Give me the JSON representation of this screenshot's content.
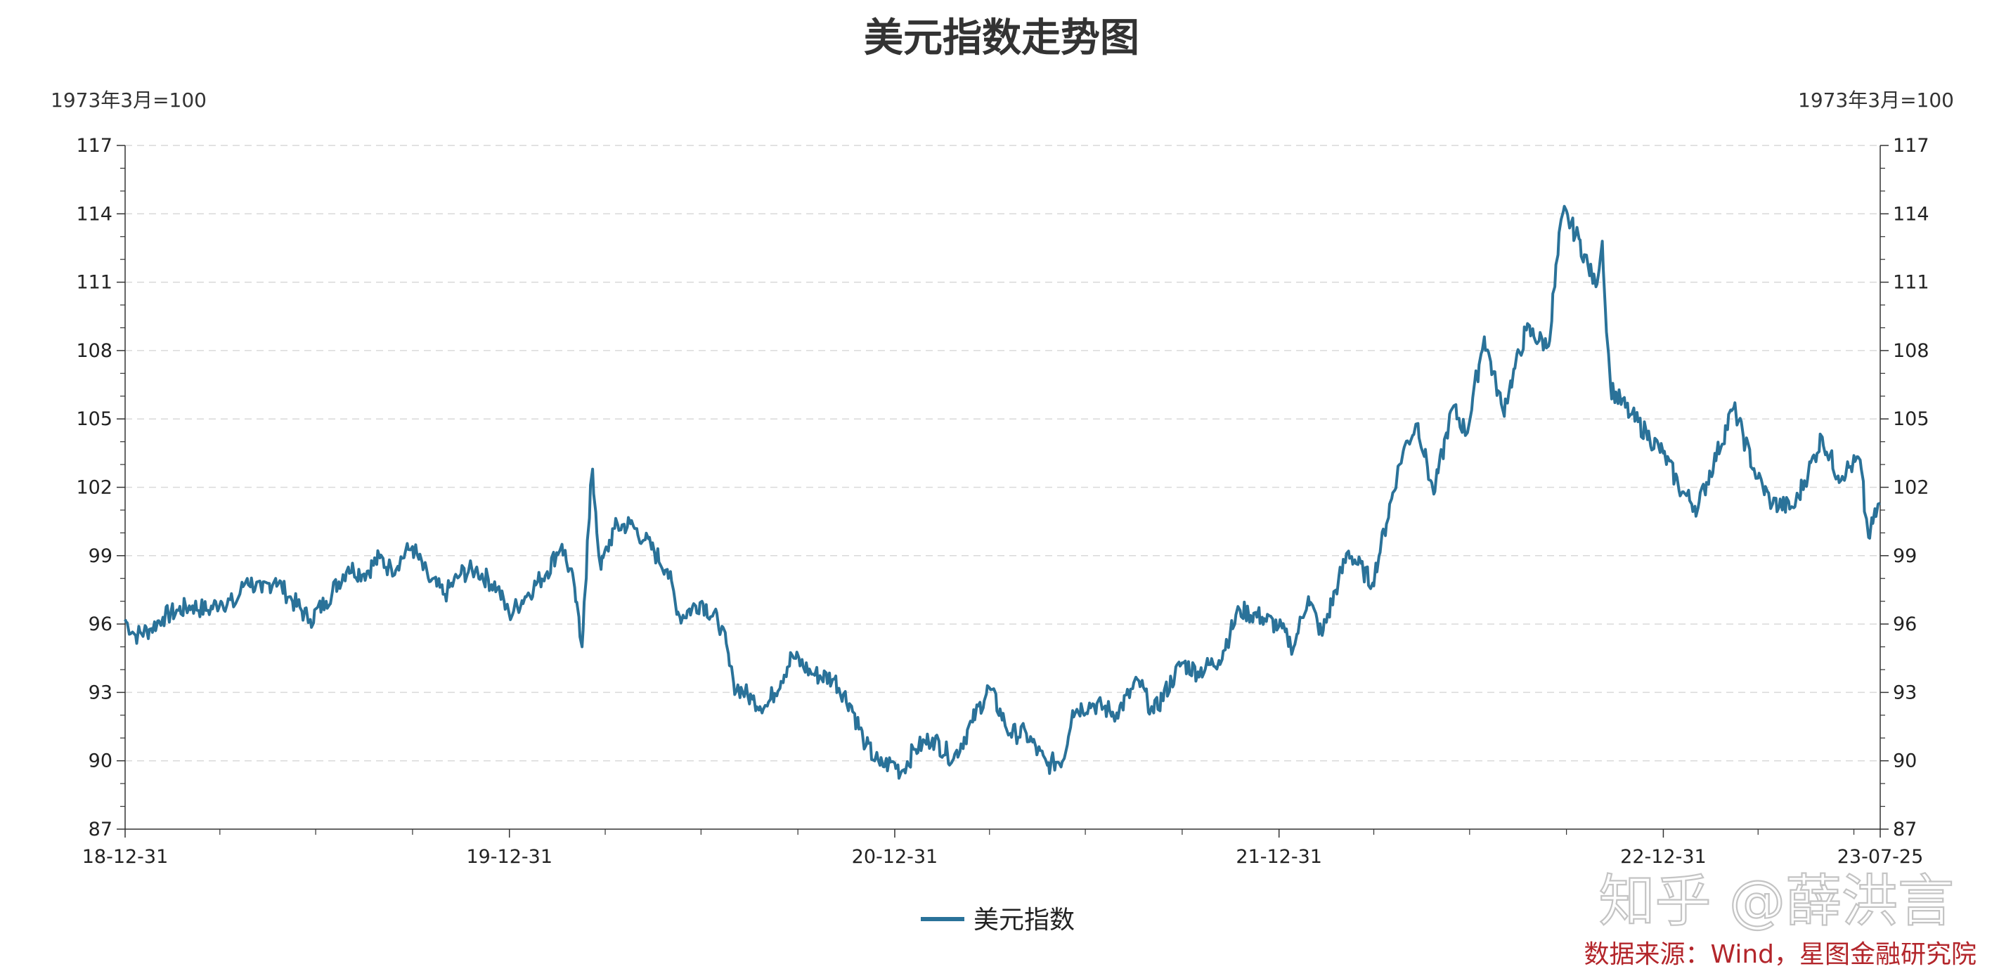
{
  "chart_data": {
    "type": "line",
    "title": "美元指数走势图",
    "ylabel_left": "1973年3月=100",
    "ylabel_right": "1973年3月=100",
    "ylim": [
      87,
      117
    ],
    "yticks": [
      "87",
      "90",
      "93",
      "96",
      "99",
      "102",
      "105",
      "108",
      "111",
      "114",
      "117"
    ],
    "xticks": [
      "18-12-31",
      "19-12-31",
      "20-12-31",
      "21-12-31",
      "22-12-31",
      "23-07-25"
    ],
    "grid": true,
    "legend_position": "bottom",
    "series": [
      {
        "name": "美元指数",
        "color": "#2a7299",
        "points": [
          [
            "2018-12-31",
            96.2
          ],
          [
            "2019-01-10",
            95.5
          ],
          [
            "2019-01-25",
            95.8
          ],
          [
            "2019-02-05",
            96.3
          ],
          [
            "2019-02-20",
            96.6
          ],
          [
            "2019-03-05",
            96.8
          ],
          [
            "2019-03-20",
            96.6
          ],
          [
            "2019-04-01",
            97.0
          ],
          [
            "2019-04-15",
            96.9
          ],
          [
            "2019-04-26",
            98.0
          ],
          [
            "2019-05-10",
            97.4
          ],
          [
            "2019-05-23",
            98.0
          ],
          [
            "2019-06-05",
            97.2
          ],
          [
            "2019-06-25",
            96.2
          ],
          [
            "2019-07-10",
            97.0
          ],
          [
            "2019-07-31",
            98.5
          ],
          [
            "2019-08-15",
            98.2
          ],
          [
            "2019-08-30",
            98.9
          ],
          [
            "2019-09-10",
            98.4
          ],
          [
            "2019-09-30",
            99.4
          ],
          [
            "2019-10-15",
            98.0
          ],
          [
            "2019-10-31",
            97.3
          ],
          [
            "2019-11-15",
            98.2
          ],
          [
            "2019-11-29",
            98.4
          ],
          [
            "2019-12-20",
            97.6
          ],
          [
            "2019-12-31",
            96.4
          ],
          [
            "2020-01-15",
            97.2
          ],
          [
            "2020-02-05",
            98.3
          ],
          [
            "2020-02-19",
            99.5
          ],
          [
            "2020-03-02",
            97.6
          ],
          [
            "2020-03-09",
            95.0
          ],
          [
            "2020-03-19",
            102.8
          ],
          [
            "2020-03-27",
            98.4
          ],
          [
            "2020-04-09",
            100.2
          ],
          [
            "2020-04-24",
            100.4
          ],
          [
            "2020-05-08",
            99.7
          ],
          [
            "2020-05-29",
            98.4
          ],
          [
            "2020-06-10",
            96.3
          ],
          [
            "2020-07-01",
            97.0
          ],
          [
            "2020-07-20",
            95.9
          ],
          [
            "2020-07-31",
            93.4
          ],
          [
            "2020-08-18",
            92.7
          ],
          [
            "2020-09-01",
            92.4
          ],
          [
            "2020-09-25",
            94.6
          ],
          [
            "2020-10-15",
            93.8
          ],
          [
            "2020-11-04",
            93.6
          ],
          [
            "2020-11-20",
            92.4
          ],
          [
            "2020-12-04",
            90.7
          ],
          [
            "2020-12-17",
            89.8
          ],
          [
            "2020-12-31",
            89.9
          ],
          [
            "2021-01-06",
            89.5
          ],
          [
            "2021-01-20",
            90.5
          ],
          [
            "2021-02-05",
            91.0
          ],
          [
            "2021-02-25",
            90.1
          ],
          [
            "2021-03-15",
            91.7
          ],
          [
            "2021-03-31",
            93.2
          ],
          [
            "2021-04-20",
            91.2
          ],
          [
            "2021-05-05",
            91.2
          ],
          [
            "2021-05-25",
            89.8
          ],
          [
            "2021-06-10",
            90.1
          ],
          [
            "2021-06-18",
            92.2
          ],
          [
            "2021-07-07",
            92.5
          ],
          [
            "2021-07-30",
            92.1
          ],
          [
            "2021-08-20",
            93.5
          ],
          [
            "2021-09-03",
            92.1
          ],
          [
            "2021-09-30",
            94.3
          ],
          [
            "2021-10-15",
            93.9
          ],
          [
            "2021-11-04",
            94.4
          ],
          [
            "2021-11-24",
            96.6
          ],
          [
            "2021-12-15",
            96.3
          ],
          [
            "2021-12-31",
            95.9
          ],
          [
            "2022-01-14",
            95.0
          ],
          [
            "2022-01-28",
            97.2
          ],
          [
            "2022-02-10",
            95.5
          ],
          [
            "2022-03-07",
            99.2
          ],
          [
            "2022-03-30",
            97.8
          ],
          [
            "2022-04-28",
            103.6
          ],
          [
            "2022-05-12",
            104.8
          ],
          [
            "2022-05-27",
            101.7
          ],
          [
            "2022-06-14",
            105.5
          ],
          [
            "2022-06-28",
            104.4
          ],
          [
            "2022-07-14",
            108.6
          ],
          [
            "2022-08-01",
            105.3
          ],
          [
            "2022-08-23",
            108.9
          ],
          [
            "2022-09-13",
            108.2
          ],
          [
            "2022-09-27",
            114.1
          ],
          [
            "2022-10-12",
            112.9
          ],
          [
            "2022-10-28",
            110.8
          ],
          [
            "2022-11-03",
            112.8
          ],
          [
            "2022-11-11",
            106.4
          ],
          [
            "2022-11-30",
            105.2
          ],
          [
            "2022-12-15",
            104.4
          ],
          [
            "2022-12-31",
            103.5
          ],
          [
            "2023-01-18",
            101.8
          ],
          [
            "2023-02-02",
            101.1
          ],
          [
            "2023-03-08",
            105.5
          ],
          [
            "2023-03-31",
            102.4
          ],
          [
            "2023-04-14",
            101.3
          ],
          [
            "2023-05-04",
            101.1
          ],
          [
            "2023-05-31",
            104.2
          ],
          [
            "2023-06-15",
            102.5
          ],
          [
            "2023-07-06",
            103.2
          ],
          [
            "2023-07-14",
            99.8
          ],
          [
            "2023-07-25",
            101.3
          ]
        ]
      }
    ]
  },
  "watermark": "知乎 @薛洪言",
  "source": "数据来源：Wind，星图金融研究院"
}
